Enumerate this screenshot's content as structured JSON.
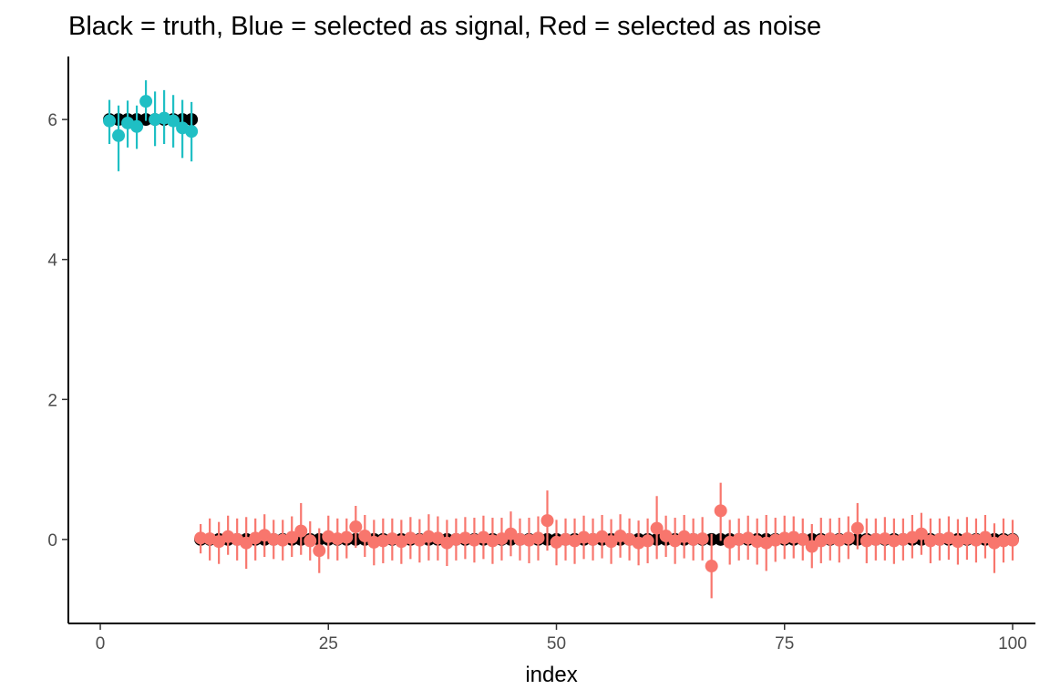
{
  "chart_data": {
    "type": "scatter",
    "title": "Black = truth, Blue = selected as signal, Red = selected as noise",
    "xlabel": "index",
    "ylabel": "",
    "xlim": [
      -3.5,
      102.5
    ],
    "ylim": [
      -1.2,
      6.9
    ],
    "x_ticks": [
      0,
      25,
      50,
      75,
      100
    ],
    "y_ticks": [
      0,
      2,
      4,
      6
    ],
    "grid": false,
    "legend": "none",
    "colors": {
      "truth": "#000000",
      "signal": "#1fbfc4",
      "noise": "#f8766d"
    },
    "truth": {
      "x_start": 1,
      "x_end": 100,
      "values": [
        6,
        6,
        6,
        6,
        6,
        6,
        6,
        6,
        6,
        6,
        0,
        0,
        0,
        0,
        0,
        0,
        0,
        0,
        0,
        0,
        0,
        0,
        0,
        0,
        0,
        0,
        0,
        0,
        0,
        0,
        0,
        0,
        0,
        0,
        0,
        0,
        0,
        0,
        0,
        0,
        0,
        0,
        0,
        0,
        0,
        0,
        0,
        0,
        0,
        0,
        0,
        0,
        0,
        0,
        0,
        0,
        0,
        0,
        0,
        0,
        0,
        0,
        0,
        0,
        0,
        0,
        0,
        0,
        0,
        0,
        0,
        0,
        0,
        0,
        0,
        0,
        0,
        0,
        0,
        0,
        0,
        0,
        0,
        0,
        0,
        0,
        0,
        0,
        0,
        0,
        0,
        0,
        0,
        0,
        0,
        0,
        0,
        0,
        0,
        0
      ]
    },
    "series": [
      {
        "key": "signal",
        "x": [
          1,
          2,
          3,
          4,
          5,
          6,
          7,
          8,
          9,
          10
        ],
        "y": [
          5.98,
          5.77,
          5.95,
          5.9,
          6.26,
          6.0,
          6.02,
          5.98,
          5.88,
          5.83
        ],
        "lower": [
          5.65,
          5.26,
          5.6,
          5.58,
          5.98,
          5.62,
          5.65,
          5.6,
          5.45,
          5.4
        ],
        "upper": [
          6.28,
          6.2,
          6.27,
          6.2,
          6.56,
          6.4,
          6.42,
          6.35,
          6.28,
          6.25
        ]
      },
      {
        "key": "noise",
        "x": [
          11,
          12,
          13,
          14,
          15,
          16,
          17,
          18,
          19,
          20,
          21,
          22,
          23,
          24,
          25,
          26,
          27,
          28,
          29,
          30,
          31,
          32,
          33,
          34,
          35,
          36,
          37,
          38,
          39,
          40,
          41,
          42,
          43,
          44,
          45,
          46,
          47,
          48,
          49,
          50,
          51,
          52,
          53,
          54,
          55,
          56,
          57,
          58,
          59,
          60,
          61,
          62,
          63,
          64,
          65,
          66,
          67,
          68,
          69,
          70,
          71,
          72,
          73,
          74,
          75,
          76,
          77,
          78,
          79,
          80,
          81,
          82,
          83,
          84,
          85,
          86,
          87,
          88,
          89,
          90,
          91,
          92,
          93,
          94,
          95,
          96,
          97,
          98,
          99,
          100
        ],
        "y": [
          0.02,
          0.01,
          -0.03,
          0.04,
          0.0,
          -0.05,
          0.02,
          0.06,
          0.0,
          -0.01,
          0.03,
          0.12,
          -0.02,
          -0.16,
          0.04,
          0.01,
          0.03,
          0.18,
          0.05,
          -0.04,
          -0.02,
          0.01,
          -0.03,
          0.02,
          -0.01,
          0.04,
          0.02,
          -0.05,
          0.0,
          0.02,
          -0.01,
          0.03,
          -0.02,
          0.01,
          0.08,
          0.0,
          -0.01,
          0.02,
          0.27,
          -0.04,
          0.0,
          -0.02,
          0.03,
          0.0,
          0.04,
          -0.03,
          0.05,
          0.0,
          -0.05,
          -0.02,
          0.16,
          0.05,
          -0.02,
          0.04,
          0.0,
          0.01,
          -0.38,
          0.41,
          -0.04,
          0.0,
          0.02,
          -0.03,
          -0.05,
          -0.01,
          0.02,
          0.03,
          0.0,
          -0.1,
          -0.02,
          0.01,
          -0.01,
          0.02,
          0.16,
          -0.02,
          0.0,
          0.01,
          -0.02,
          0.0,
          0.03,
          0.08,
          -0.02,
          0.0,
          0.02,
          -0.03,
          0.01,
          -0.01,
          0.03,
          -0.05,
          -0.02,
          -0.01
        ],
        "lower": [
          -0.2,
          -0.3,
          -0.35,
          -0.22,
          -0.3,
          -0.42,
          -0.3,
          -0.25,
          -0.28,
          -0.3,
          -0.25,
          -0.22,
          -0.3,
          -0.48,
          -0.28,
          -0.3,
          -0.27,
          -0.12,
          -0.25,
          -0.37,
          -0.34,
          -0.3,
          -0.35,
          -0.28,
          -0.33,
          -0.3,
          -0.3,
          -0.38,
          -0.3,
          -0.28,
          -0.33,
          -0.28,
          -0.35,
          -0.3,
          -0.24,
          -0.3,
          -0.34,
          -0.3,
          -0.16,
          -0.37,
          -0.3,
          -0.35,
          -0.28,
          -0.3,
          -0.27,
          -0.35,
          -0.26,
          -0.3,
          -0.37,
          -0.34,
          -0.28,
          -0.25,
          -0.35,
          -0.27,
          -0.3,
          -0.3,
          -0.84,
          -0.02,
          -0.36,
          -0.3,
          -0.29,
          -0.36,
          -0.45,
          -0.32,
          -0.28,
          -0.27,
          -0.3,
          -0.41,
          -0.34,
          -0.3,
          -0.33,
          -0.28,
          -0.14,
          -0.34,
          -0.3,
          -0.3,
          -0.35,
          -0.3,
          -0.27,
          -0.22,
          -0.34,
          -0.3,
          -0.29,
          -0.36,
          -0.29,
          -0.33,
          -0.27,
          -0.48,
          -0.33,
          -0.3
        ],
        "upper": [
          0.22,
          0.3,
          0.25,
          0.34,
          0.3,
          0.32,
          0.3,
          0.36,
          0.28,
          0.28,
          0.33,
          0.52,
          0.26,
          0.16,
          0.34,
          0.3,
          0.3,
          0.48,
          0.35,
          0.28,
          0.3,
          0.3,
          0.28,
          0.32,
          0.29,
          0.36,
          0.33,
          0.28,
          0.3,
          0.32,
          0.31,
          0.34,
          0.31,
          0.31,
          0.4,
          0.3,
          0.31,
          0.33,
          0.7,
          0.28,
          0.3,
          0.3,
          0.34,
          0.3,
          0.35,
          0.29,
          0.36,
          0.3,
          0.27,
          0.3,
          0.62,
          0.34,
          0.31,
          0.35,
          0.3,
          0.32,
          0.08,
          0.81,
          0.28,
          0.3,
          0.34,
          0.3,
          0.35,
          0.31,
          0.34,
          0.33,
          0.3,
          0.22,
          0.31,
          0.3,
          0.31,
          0.33,
          0.52,
          0.3,
          0.3,
          0.32,
          0.3,
          0.3,
          0.35,
          0.38,
          0.3,
          0.3,
          0.33,
          0.29,
          0.32,
          0.3,
          0.35,
          0.23,
          0.3,
          0.28
        ]
      }
    ]
  }
}
